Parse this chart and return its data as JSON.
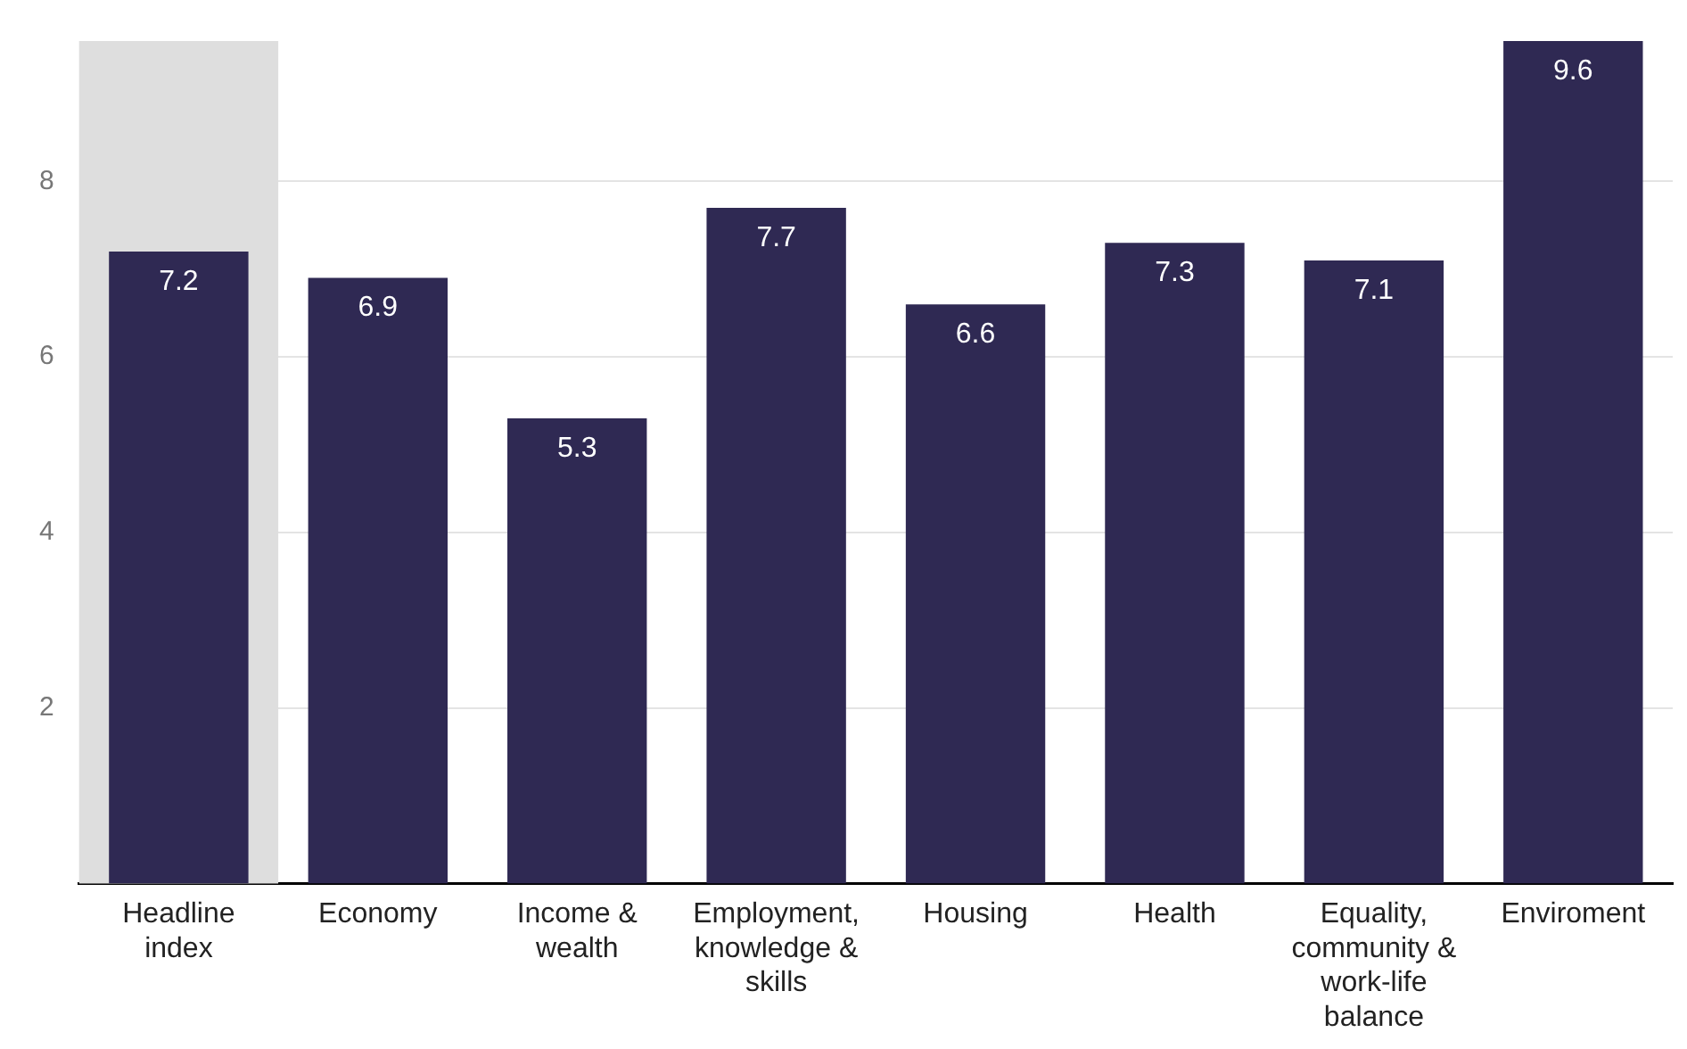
{
  "chart_data": {
    "type": "bar",
    "categories": [
      "Headline index",
      "Economy",
      "Income & wealth",
      "Employment, knowledge & skills",
      "Housing",
      "Health",
      "Equality, community & work-life balance",
      "Enviroment"
    ],
    "values": [
      7.2,
      6.9,
      5.3,
      7.7,
      6.6,
      7.3,
      7.1,
      9.6
    ],
    "color": "#2f2953",
    "ylim": [
      0,
      9.6
    ],
    "yticks": [
      2,
      4,
      6,
      8
    ],
    "grid": "y",
    "legend": false,
    "data_labels": true,
    "bands": [
      {
        "axis": "x",
        "from": "Headline index",
        "to": "Headline index",
        "color": "#dedede"
      }
    ]
  }
}
